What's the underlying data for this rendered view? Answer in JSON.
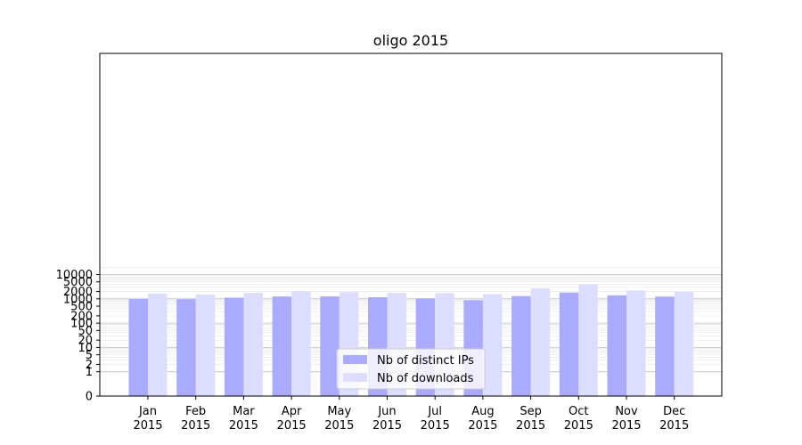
{
  "chart_data": {
    "type": "bar",
    "title": "oligo 2015",
    "xlabel": "",
    "ylabel": "",
    "y_scale": "symlog",
    "categories": [
      [
        "Jan",
        "2015"
      ],
      [
        "Feb",
        "2015"
      ],
      [
        "Mar",
        "2015"
      ],
      [
        "Apr",
        "2015"
      ],
      [
        "May",
        "2015"
      ],
      [
        "Jun",
        "2015"
      ],
      [
        "Jul",
        "2015"
      ],
      [
        "Aug",
        "2015"
      ],
      [
        "Sep",
        "2015"
      ],
      [
        "Oct",
        "2015"
      ],
      [
        "Nov",
        "2015"
      ],
      [
        "Dec",
        "2015"
      ]
    ],
    "series": [
      {
        "name": "Nb of distinct IPs",
        "color": "#aaaaff",
        "values": [
          980,
          960,
          1120,
          1250,
          1260,
          1160,
          1050,
          880,
          1300,
          1820,
          1400,
          1240
        ]
      },
      {
        "name": "Nb of downloads",
        "color": "#ddddff",
        "values": [
          1650,
          1520,
          1760,
          2050,
          1900,
          1780,
          1730,
          1560,
          2700,
          3900,
          2200,
          1950
        ]
      }
    ],
    "yticks": [
      0,
      1,
      2,
      5,
      10,
      20,
      50,
      100,
      200,
      500,
      1000,
      2000,
      5000,
      10000
    ],
    "ylim": [
      0,
      20000
    ],
    "grid": true,
    "legend_position": "bottom-center"
  }
}
